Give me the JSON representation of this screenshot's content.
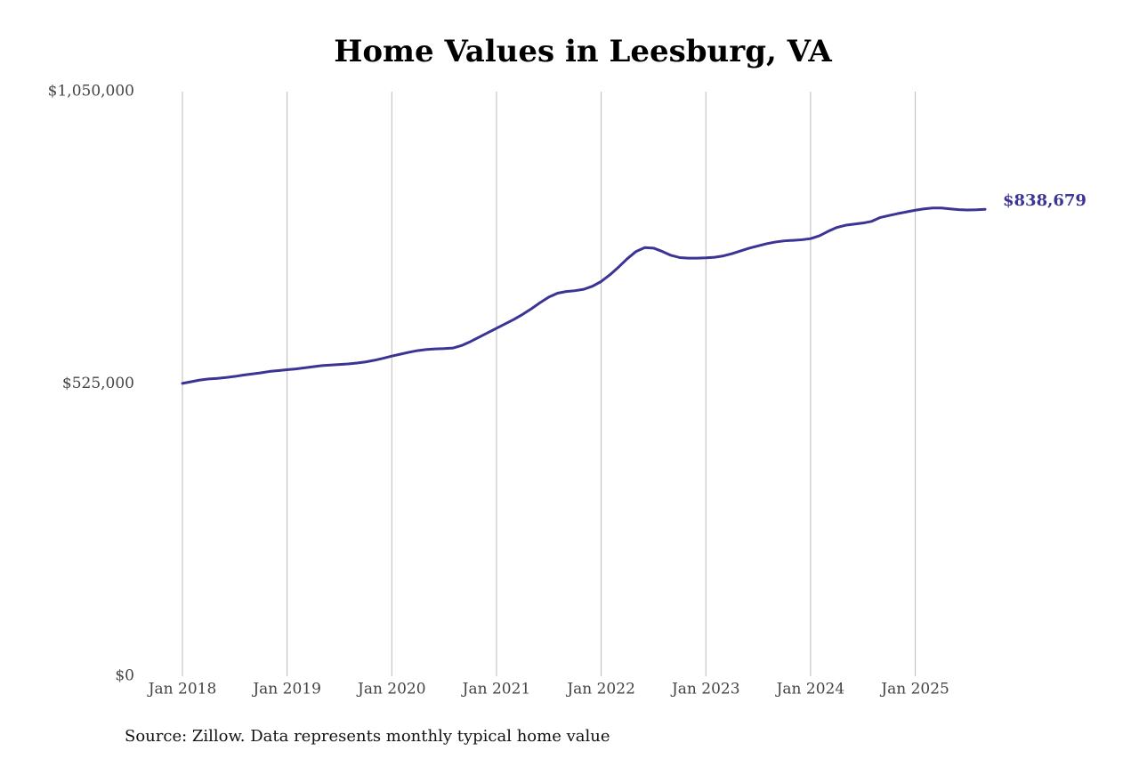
{
  "chart_data": {
    "type": "line",
    "title": "Home Values in Leesburg, VA",
    "source": "Source: Zillow. Data represents monthly typical home value",
    "x": [
      "2018-01",
      "2018-02",
      "2018-03",
      "2018-04",
      "2018-05",
      "2018-06",
      "2018-07",
      "2018-08",
      "2018-09",
      "2018-10",
      "2018-11",
      "2018-12",
      "2019-01",
      "2019-02",
      "2019-03",
      "2019-04",
      "2019-05",
      "2019-06",
      "2019-07",
      "2019-08",
      "2019-09",
      "2019-10",
      "2019-11",
      "2019-12",
      "2020-01",
      "2020-02",
      "2020-03",
      "2020-04",
      "2020-05",
      "2020-06",
      "2020-07",
      "2020-08",
      "2020-09",
      "2020-10",
      "2020-11",
      "2020-12",
      "2021-01",
      "2021-02",
      "2021-03",
      "2021-04",
      "2021-05",
      "2021-06",
      "2021-07",
      "2021-08",
      "2021-09",
      "2021-10",
      "2021-11",
      "2021-12",
      "2022-01",
      "2022-02",
      "2022-03",
      "2022-04",
      "2022-05",
      "2022-06",
      "2022-07",
      "2022-08",
      "2022-09",
      "2022-10",
      "2022-11",
      "2022-12",
      "2023-01",
      "2023-02",
      "2023-03",
      "2023-04",
      "2023-05",
      "2023-06",
      "2023-07",
      "2023-08",
      "2023-09",
      "2023-10",
      "2023-11",
      "2023-12",
      "2024-01",
      "2024-02",
      "2024-03",
      "2024-04",
      "2024-05",
      "2024-06",
      "2024-07",
      "2024-08",
      "2024-09",
      "2024-10",
      "2024-11",
      "2024-12",
      "2025-01",
      "2025-02",
      "2025-03",
      "2025-04",
      "2025-05",
      "2025-06",
      "2025-07",
      "2025-08",
      "2025-09"
    ],
    "series": [
      {
        "color": "#3b3494",
        "values": [
          526000,
          529000,
          532000,
          534000,
          535000,
          536500,
          538500,
          541000,
          543000,
          545000,
          547500,
          549000,
          550500,
          552000,
          554000,
          556000,
          558000,
          559000,
          560000,
          561000,
          562500,
          564500,
          567500,
          571000,
          575000,
          578500,
          582000,
          585000,
          587000,
          588000,
          588500,
          589500,
          594000,
          601000,
          609000,
          617000,
          625000,
          633000,
          641000,
          650000,
          660000,
          671000,
          681000,
          688000,
          691000,
          692500,
          695000,
          700500,
          709000,
          721000,
          735000,
          750000,
          763000,
          770000,
          769000,
          763000,
          756000,
          752000,
          751000,
          751000,
          751500,
          752500,
          755000,
          759000,
          764000,
          769000,
          773000,
          777000,
          780000,
          782000,
          783000,
          784000,
          786000,
          791000,
          799000,
          806000,
          810000,
          812000,
          814000,
          817000,
          824000,
          827500,
          831000,
          834000,
          837000,
          839500,
          841000,
          841000,
          839500,
          838000,
          837500,
          837800,
          838679
        ],
        "value_labels": [
          null,
          null,
          null,
          null,
          null,
          null,
          null,
          null,
          null,
          null,
          null,
          null,
          null,
          null,
          null,
          null,
          null,
          null,
          null,
          null,
          null,
          null,
          null,
          null,
          null,
          null,
          null,
          null,
          null,
          null,
          null,
          null,
          null,
          null,
          null,
          null,
          null,
          null,
          null,
          null,
          null,
          null,
          null,
          null,
          null,
          null,
          null,
          null,
          null,
          null,
          null,
          null,
          null,
          null,
          null,
          null,
          null,
          null,
          null,
          null,
          null,
          null,
          null,
          null,
          null,
          null,
          null,
          null,
          null,
          null,
          null,
          null,
          null,
          null,
          null,
          null,
          null,
          null,
          null,
          null,
          null,
          null,
          null,
          null,
          null,
          null,
          null,
          null,
          null,
          null,
          null,
          null,
          "$838,679"
        ]
      }
    ],
    "xlim": [
      "2018-01",
      "2025-09"
    ],
    "xticks": [
      {
        "value": "2018-01",
        "label": "Jan 2018"
      },
      {
        "value": "2019-01",
        "label": "Jan 2019"
      },
      {
        "value": "2020-01",
        "label": "Jan 2020"
      },
      {
        "value": "2021-01",
        "label": "Jan 2021"
      },
      {
        "value": "2022-01",
        "label": "Jan 2022"
      },
      {
        "value": "2023-01",
        "label": "Jan 2023"
      },
      {
        "value": "2024-01",
        "label": "Jan 2024"
      },
      {
        "value": "2025-01",
        "label": "Jan 2025"
      }
    ],
    "ylim": [
      0,
      1050000
    ],
    "yticks": [
      {
        "value": 0,
        "label": "$0"
      },
      {
        "value": 525000,
        "label": "$525,000"
      },
      {
        "value": 1050000,
        "label": "$1,050,000"
      }
    ],
    "grid": "x"
  }
}
